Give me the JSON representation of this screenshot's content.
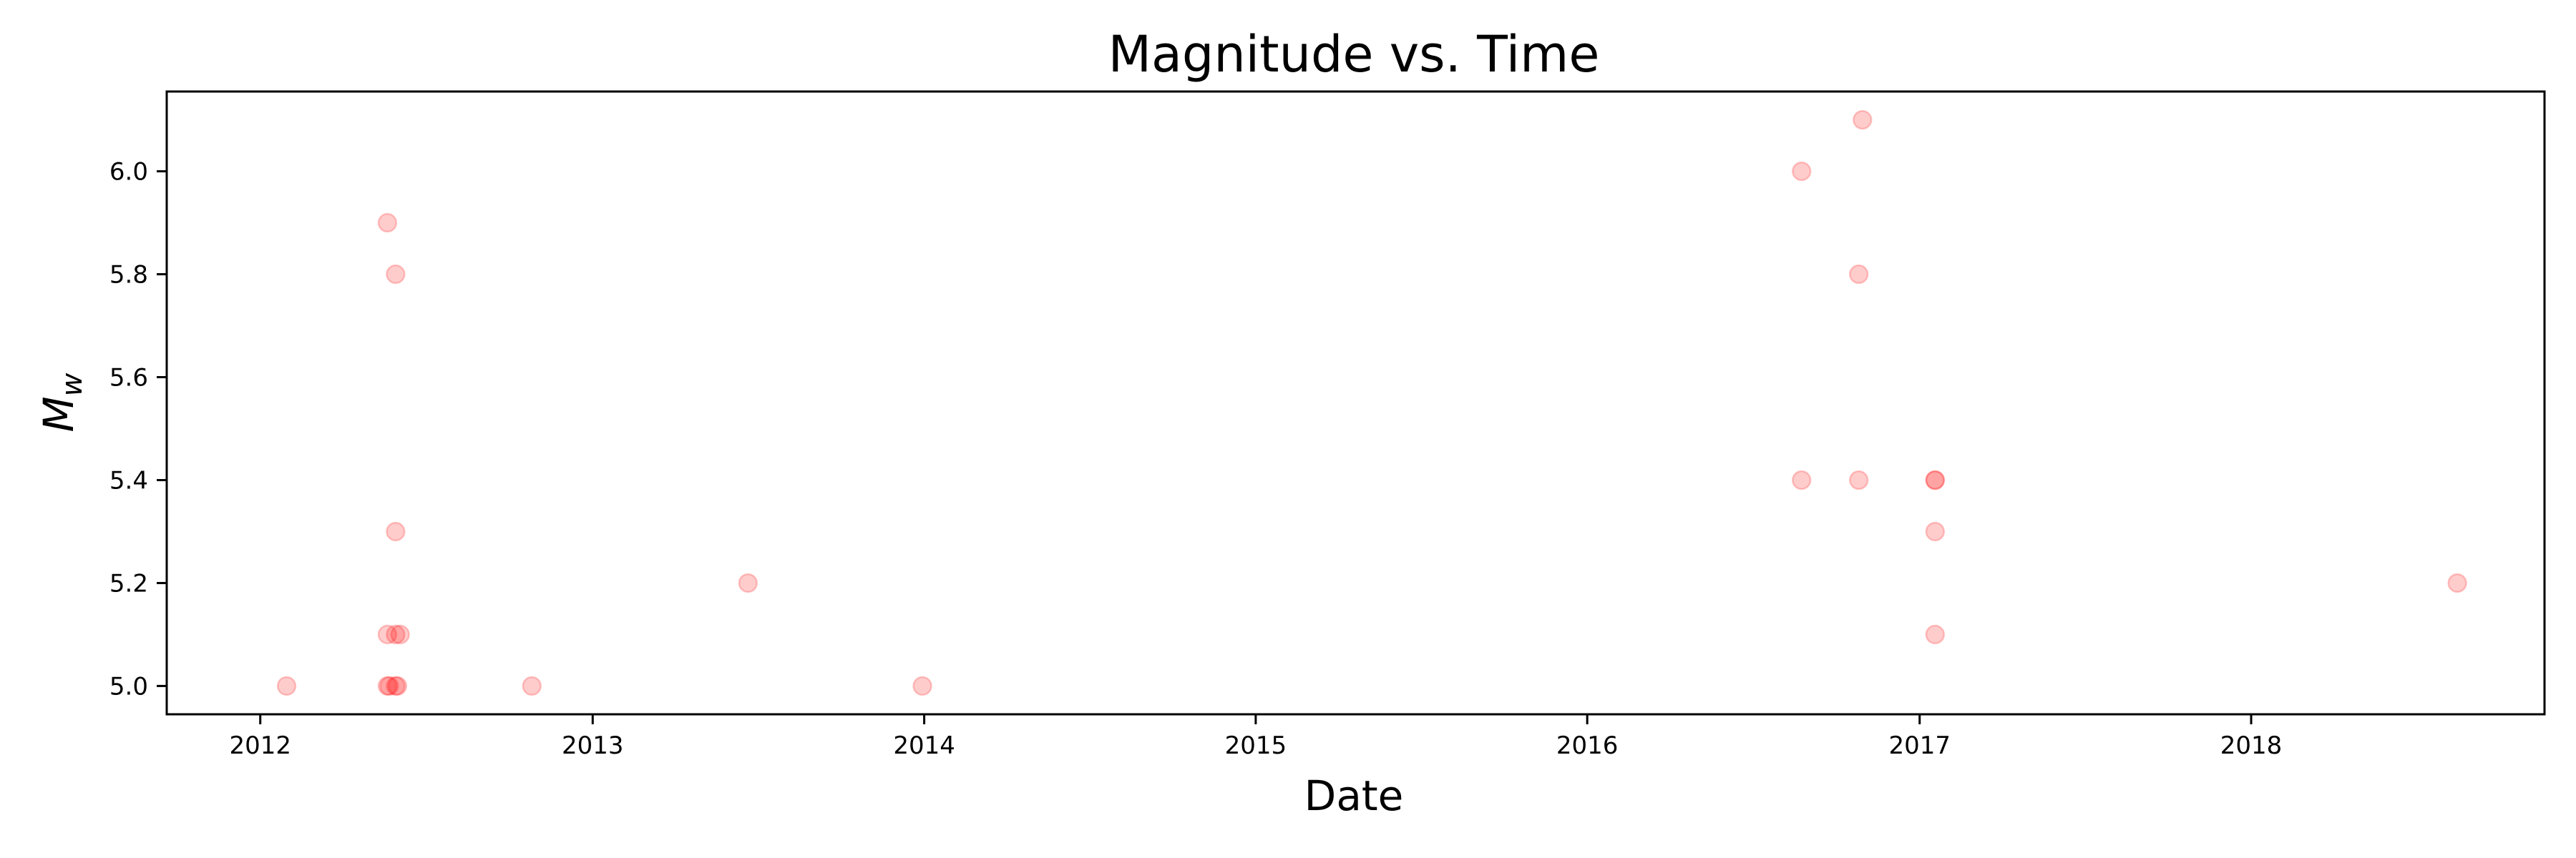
{
  "chart_data": {
    "type": "scatter",
    "title": "Magnitude vs. Time",
    "xlabel": "Date",
    "ylabel": {
      "base": "M",
      "subscript": "w"
    },
    "x_axis_type": "date",
    "xlim": [
      "2011-09-20",
      "2018-11-20"
    ],
    "ylim": [
      4.945,
      6.155
    ],
    "xticks": [
      {
        "date": "2012-01-01",
        "label": "2012"
      },
      {
        "date": "2013-01-01",
        "label": "2013"
      },
      {
        "date": "2014-01-01",
        "label": "2014"
      },
      {
        "date": "2015-01-01",
        "label": "2015"
      },
      {
        "date": "2016-01-01",
        "label": "2016"
      },
      {
        "date": "2017-01-01",
        "label": "2017"
      },
      {
        "date": "2018-01-01",
        "label": "2018"
      }
    ],
    "yticks": [
      {
        "value": 5.0,
        "label": "5.0"
      },
      {
        "value": 5.2,
        "label": "5.2"
      },
      {
        "value": 5.4,
        "label": "5.4"
      },
      {
        "value": 5.6,
        "label": "5.6"
      },
      {
        "value": 5.8,
        "label": "5.8"
      },
      {
        "value": 6.0,
        "label": "6.0"
      }
    ],
    "grid": false,
    "marker_color": "#ff0000",
    "marker_alpha": 0.2,
    "points": [
      {
        "x": "2012-01-30",
        "y": 5.0
      },
      {
        "x": "2012-05-20",
        "y": 5.9
      },
      {
        "x": "2012-05-20",
        "y": 5.1
      },
      {
        "x": "2012-05-20",
        "y": 5.0
      },
      {
        "x": "2012-05-22",
        "y": 5.0
      },
      {
        "x": "2012-05-29",
        "y": 5.8
      },
      {
        "x": "2012-05-29",
        "y": 5.3
      },
      {
        "x": "2012-05-29",
        "y": 5.1
      },
      {
        "x": "2012-05-29",
        "y": 5.0
      },
      {
        "x": "2012-05-31",
        "y": 5.0
      },
      {
        "x": "2012-06-03",
        "y": 5.1
      },
      {
        "x": "2012-10-26",
        "y": 5.0
      },
      {
        "x": "2013-06-21",
        "y": 5.2
      },
      {
        "x": "2013-12-30",
        "y": 5.0
      },
      {
        "x": "2016-08-24",
        "y": 6.0
      },
      {
        "x": "2016-08-24",
        "y": 5.4
      },
      {
        "x": "2016-10-26",
        "y": 5.8
      },
      {
        "x": "2016-10-26",
        "y": 5.4
      },
      {
        "x": "2016-10-30",
        "y": 6.1
      },
      {
        "x": "2017-01-18",
        "y": 5.4
      },
      {
        "x": "2017-01-18",
        "y": 5.4
      },
      {
        "x": "2017-01-18",
        "y": 5.3
      },
      {
        "x": "2017-01-18",
        "y": 5.1
      },
      {
        "x": "2018-08-16",
        "y": 5.2
      }
    ]
  }
}
